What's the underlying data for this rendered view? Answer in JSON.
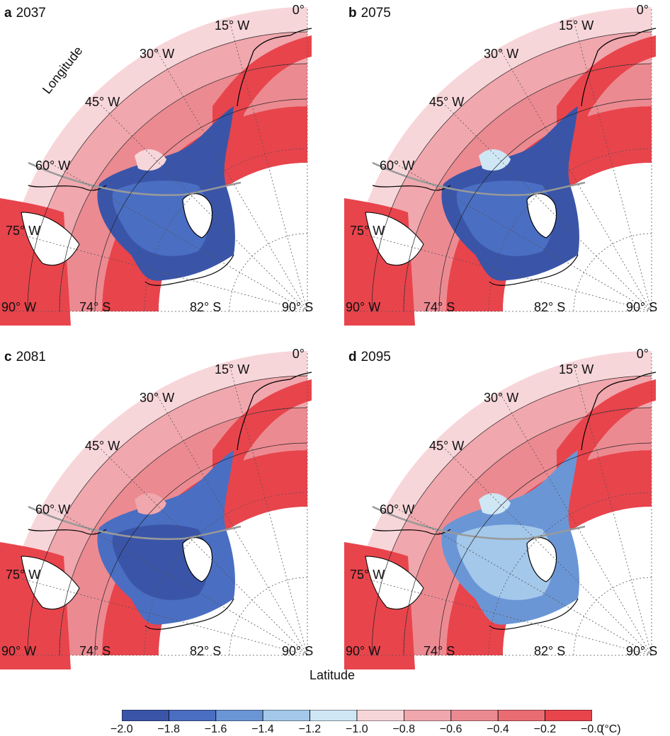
{
  "panels": [
    {
      "letter": "a",
      "year": "2037"
    },
    {
      "letter": "b",
      "year": "2075"
    },
    {
      "letter": "c",
      "year": "2081"
    },
    {
      "letter": "d",
      "year": "2095"
    }
  ],
  "longitude_labels": [
    "0°",
    "15° W",
    "30° W",
    "45° W",
    "60° W",
    "75° W",
    "90° W"
  ],
  "latitude_labels": [
    "74° S",
    "82° S",
    "90° S"
  ],
  "axis_labels": {
    "longitude": "Longitude",
    "latitude": "Latitude"
  },
  "colorbar": {
    "ticks": [
      "−2.0",
      "−1.8",
      "−1.6",
      "−1.4",
      "−1.2",
      "−1.0",
      "−0.8",
      "−0.6",
      "−0.4",
      "−0.2",
      "−0.0"
    ],
    "unit": "(°C)",
    "colors": [
      "#3a55a8",
      "#4a6ec2",
      "#6b96d6",
      "#a3c8ea",
      "#cfe6f5",
      "#f7d6da",
      "#f0a7ad",
      "#ec8a91",
      "#ea6c73",
      "#e8444c"
    ]
  },
  "colors": {
    "land_white": "#ffffff",
    "coast": "#000000",
    "grounding_line": "#999999",
    "grid": "#555555"
  }
}
